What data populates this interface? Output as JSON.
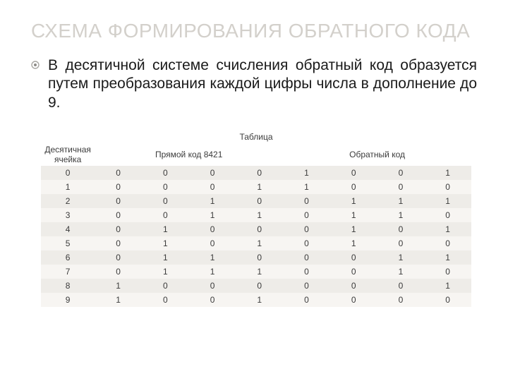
{
  "title": {
    "text": "СХЕМА ФОРМИРОВАНИЯ ОБРАТНОГО КОДА",
    "color": "#d3d0cb"
  },
  "bullet": {
    "ring_color": "#a9a7a3",
    "dot_color": "#8d8b87"
  },
  "body": "В десятичной системе счисления обратный код образуется путем преобразования каждой цифры числа в дополнение до 9.",
  "table": {
    "caption": "Таблица",
    "columns_decimal": "Десятичная ячейка",
    "columns_direct": "Прямой код 8421",
    "columns_inverse": "Обратный код",
    "header_bg": "#ffffff",
    "row_odd_bg": "#eeece8",
    "row_even_bg": "#f7f5f2",
    "text_color": "#3b3b3b",
    "rows": [
      {
        "d": "0",
        "direct": [
          "0",
          "0",
          "0",
          "0"
        ],
        "inverse": [
          "1",
          "0",
          "0",
          "1"
        ]
      },
      {
        "d": "1",
        "direct": [
          "0",
          "0",
          "0",
          "1"
        ],
        "inverse": [
          "1",
          "0",
          "0",
          "0"
        ]
      },
      {
        "d": "2",
        "direct": [
          "0",
          "0",
          "1",
          "0"
        ],
        "inverse": [
          "0",
          "1",
          "1",
          "1"
        ]
      },
      {
        "d": "3",
        "direct": [
          "0",
          "0",
          "1",
          "1"
        ],
        "inverse": [
          "0",
          "1",
          "1",
          "0"
        ]
      },
      {
        "d": "4",
        "direct": [
          "0",
          "1",
          "0",
          "0"
        ],
        "inverse": [
          "0",
          "1",
          "0",
          "1"
        ]
      },
      {
        "d": "5",
        "direct": [
          "0",
          "1",
          "0",
          "1"
        ],
        "inverse": [
          "0",
          "1",
          "0",
          "0"
        ]
      },
      {
        "d": "6",
        "direct": [
          "0",
          "1",
          "1",
          "0"
        ],
        "inverse": [
          "0",
          "0",
          "1",
          "1"
        ]
      },
      {
        "d": "7",
        "direct": [
          "0",
          "1",
          "1",
          "1"
        ],
        "inverse": [
          "0",
          "0",
          "1",
          "0"
        ]
      },
      {
        "d": "8",
        "direct": [
          "1",
          "0",
          "0",
          "0"
        ],
        "inverse": [
          "0",
          "0",
          "0",
          "1"
        ]
      },
      {
        "d": "9",
        "direct": [
          "1",
          "0",
          "0",
          "1"
        ],
        "inverse": [
          "0",
          "0",
          "0",
          "0"
        ]
      }
    ]
  }
}
